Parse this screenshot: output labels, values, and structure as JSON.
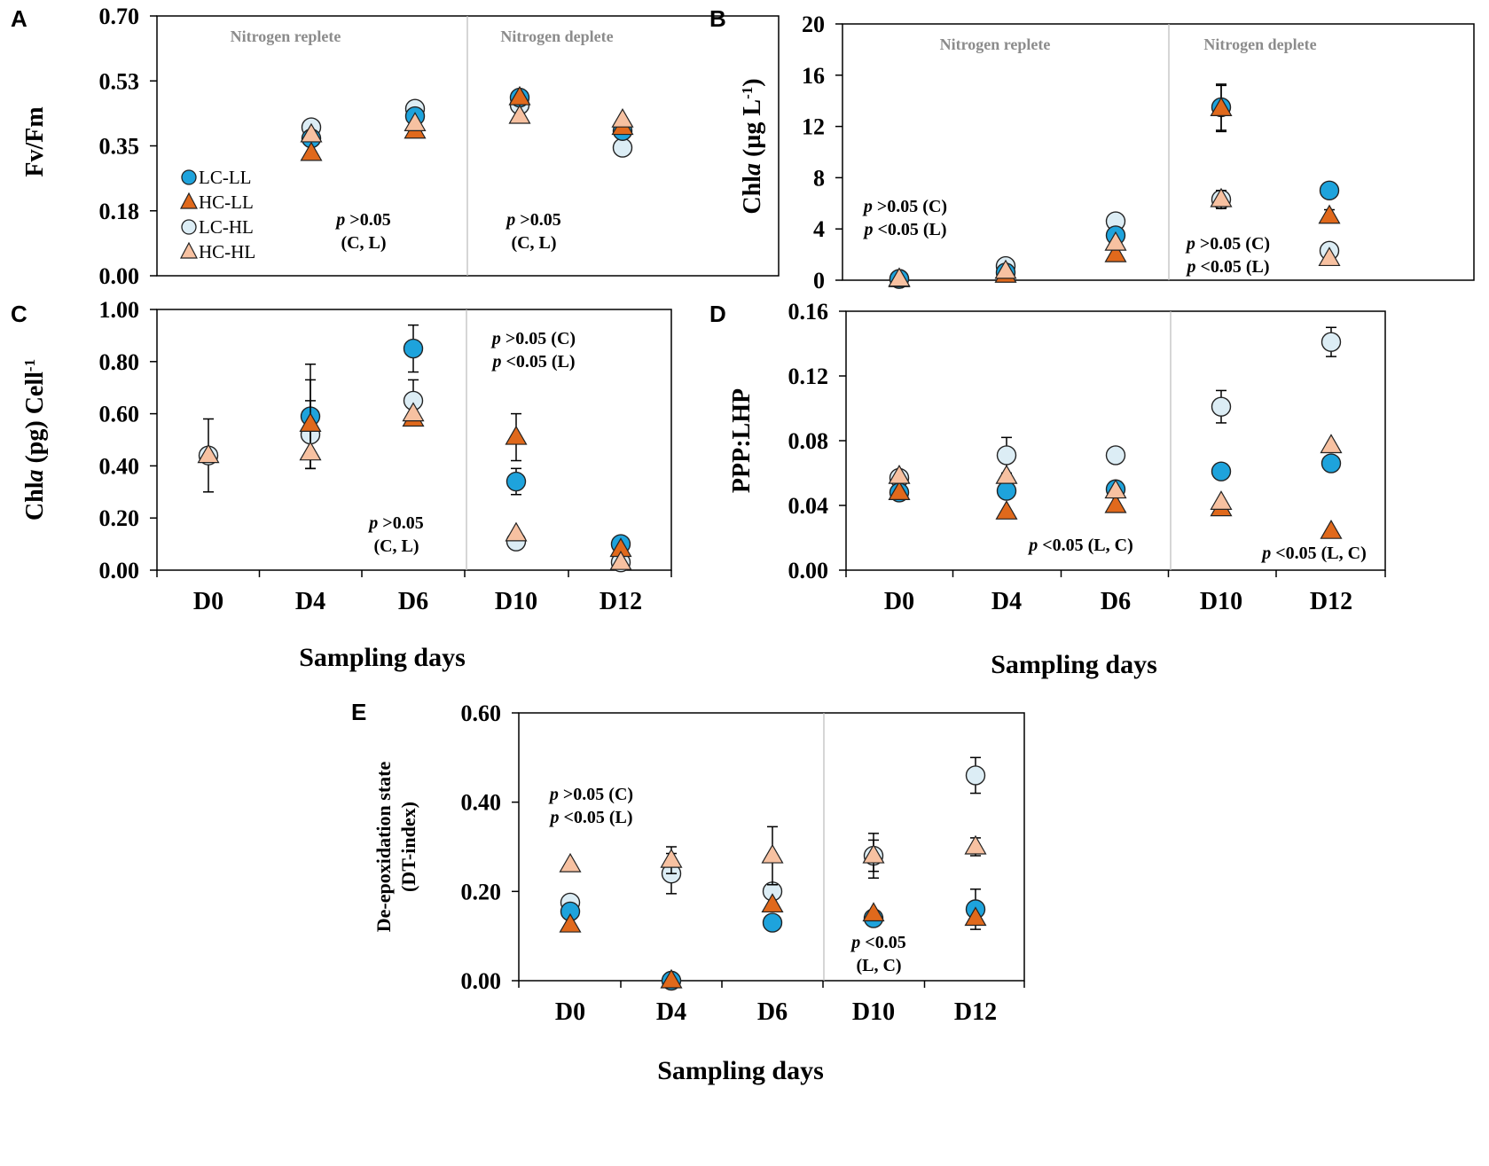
{
  "figure": {
    "legend": [
      {
        "key": "LC-LL",
        "label": "LC-LL",
        "marker": "circle",
        "fill": "#1ea3dc"
      },
      {
        "key": "HC-LL",
        "label": "HC-LL",
        "marker": "triangle",
        "fill": "#e0691c"
      },
      {
        "key": "LC-HL",
        "label": "LC-HL",
        "marker": "circle",
        "fill": "#dcedf5"
      },
      {
        "key": "HC-HL",
        "label": "HC-HL",
        "marker": "triangle",
        "fill": "#f7c1a1"
      }
    ],
    "colors": {
      "edge": "#222222",
      "divider": "#bbbbbb"
    }
  },
  "chart_data": [
    {
      "id": "A",
      "panel_letter": "A",
      "type": "scatter",
      "title": "",
      "ylabel": "Fv/Fm",
      "xlabel": "",
      "ylim": [
        0,
        0.7
      ],
      "yticks": [
        "0.00",
        "0.18",
        "0.35",
        "0.53",
        "0.70"
      ],
      "categories": [
        "D0",
        "D4",
        "D6",
        "D10",
        "D12"
      ],
      "show_xticks": false,
      "region_labels": [
        "Nitrogen replete",
        "Nitrogen deplete"
      ],
      "series": [
        {
          "name": "LC-LL",
          "values": [
            null,
            0.37,
            0.43,
            0.48,
            0.39
          ],
          "errors": [
            null,
            0,
            0,
            0,
            0
          ]
        },
        {
          "name": "HC-LL",
          "values": [
            null,
            0.33,
            0.39,
            0.48,
            0.4
          ],
          "errors": [
            null,
            0,
            0,
            0,
            0
          ]
        },
        {
          "name": "LC-HL",
          "values": [
            null,
            0.4,
            0.45,
            0.46,
            0.345
          ],
          "errors": [
            null,
            0,
            0,
            0,
            0
          ]
        },
        {
          "name": "HC-HL",
          "values": [
            null,
            0.38,
            0.41,
            0.43,
            0.42
          ],
          "errors": [
            null,
            0,
            0,
            0,
            0
          ]
        }
      ],
      "annotations": [
        {
          "p": "p",
          "text1": " >0.05",
          "text2": "(C, L)"
        },
        {
          "p": "p",
          "text1": " >0.05",
          "text2": "(C, L)"
        }
      ]
    },
    {
      "id": "B",
      "panel_letter": "B",
      "type": "scatter",
      "title": "",
      "ylabel": "Chla (µg L-1)",
      "ylabel_parts": [
        "Chl",
        "a",
        " (µg L",
        "-1",
        ")"
      ],
      "xlabel": "",
      "ylim": [
        0,
        20
      ],
      "yticks": [
        "0",
        "4",
        "8",
        "12",
        "16",
        "20"
      ],
      "categories": [
        "D0",
        "D4",
        "D6",
        "D10",
        "D12"
      ],
      "show_xticks": false,
      "region_labels": [
        "Nitrogen replete",
        "Nitrogen deplete"
      ],
      "series": [
        {
          "name": "LC-LL",
          "values": [
            0.1,
            0.6,
            3.5,
            13.5,
            7.0
          ],
          "errors": [
            0,
            0,
            0,
            1.8,
            0
          ]
        },
        {
          "name": "HC-LL",
          "values": [
            0.05,
            0.4,
            2.0,
            13.4,
            5.0
          ],
          "errors": [
            0,
            0,
            0,
            1.8,
            0.5
          ]
        },
        {
          "name": "LC-HL",
          "values": [
            0.1,
            1.1,
            4.6,
            6.3,
            2.3
          ],
          "errors": [
            0,
            0,
            0,
            0.7,
            0
          ]
        },
        {
          "name": "HC-HL",
          "values": [
            0.1,
            0.7,
            2.9,
            6.3,
            1.7
          ],
          "errors": [
            0,
            0,
            0,
            0.7,
            0
          ]
        }
      ],
      "annotations": [
        {
          "p": "p",
          "text1": " >0.05 (C)",
          "text2": " <0.05 (L)"
        },
        {
          "p": "p",
          "text1": " >0.05 (C)",
          "text2": " <0.05 (L)"
        }
      ]
    },
    {
      "id": "C",
      "panel_letter": "C",
      "type": "scatter",
      "title": "",
      "ylabel": "Chla (pg) Cell-1",
      "ylabel_parts": [
        "Chl",
        "a",
        " (pg) Cell",
        "-1",
        ""
      ],
      "xlabel": "Sampling days",
      "ylim": [
        0,
        1.0
      ],
      "yticks": [
        "0.00",
        "0.20",
        "0.40",
        "0.60",
        "0.80",
        "1.00"
      ],
      "categories": [
        "D0",
        "D4",
        "D6",
        "D10",
        "D12"
      ],
      "show_xticks": true,
      "region_labels": [],
      "series": [
        {
          "name": "LC-LL",
          "values": [
            null,
            0.59,
            0.85,
            0.34,
            0.1
          ],
          "errors": [
            null,
            0.2,
            0.09,
            0.05,
            0
          ]
        },
        {
          "name": "HC-LL",
          "values": [
            null,
            0.56,
            0.58,
            0.51,
            0.08
          ],
          "errors": [
            null,
            0.17,
            0,
            0.09,
            0
          ]
        },
        {
          "name": "LC-HL",
          "values": [
            0.44,
            0.52,
            0.65,
            0.11,
            0.03
          ],
          "errors": [
            0.14,
            0.13,
            0.08,
            0,
            0
          ]
        },
        {
          "name": "HC-HL",
          "values": [
            0.44,
            0.45,
            0.6,
            0.14,
            0.03
          ],
          "errors": [
            0,
            0,
            0,
            0,
            0
          ]
        }
      ],
      "annotations": [
        {
          "p": "p",
          "text1": " >0.05",
          "text2": "(C, L)"
        },
        {
          "p": "p",
          "text1": " >0.05 (C)",
          "text2": " <0.05 (L)"
        }
      ]
    },
    {
      "id": "D",
      "panel_letter": "D",
      "type": "scatter",
      "title": "",
      "ylabel": "PPP:LHP",
      "xlabel": "Sampling days",
      "ylim": [
        0,
        0.16
      ],
      "yticks": [
        "0.00",
        "0.04",
        "0.08",
        "0.12",
        "0.16"
      ],
      "categories": [
        "D0",
        "D4",
        "D6",
        "D10",
        "D12"
      ],
      "show_xticks": true,
      "region_labels": [],
      "series": [
        {
          "name": "LC-LL",
          "values": [
            0.048,
            0.049,
            0.05,
            0.061,
            0.066
          ],
          "errors": [
            0,
            0,
            0,
            0,
            0
          ]
        },
        {
          "name": "HC-LL",
          "values": [
            0.048,
            0.036,
            0.04,
            0.038,
            0.024
          ],
          "errors": [
            0,
            0,
            0,
            0,
            0
          ]
        },
        {
          "name": "LC-HL",
          "values": [
            0.057,
            0.071,
            0.071,
            0.101,
            0.141
          ],
          "errors": [
            0,
            0.011,
            0,
            0.01,
            0.009
          ]
        },
        {
          "name": "HC-HL",
          "values": [
            0.058,
            0.058,
            0.049,
            0.042,
            0.077
          ],
          "errors": [
            0,
            0,
            0,
            0,
            0
          ]
        }
      ],
      "annotations": [
        {
          "p": "p",
          "text1": " <0.05 (L, C)",
          "text2": ""
        },
        {
          "p": "p",
          "text1": " <0.05 (L, C)",
          "text2": ""
        }
      ]
    },
    {
      "id": "E",
      "panel_letter": "E",
      "type": "scatter",
      "title": "",
      "ylabel": "De-epoxidation state (DT-index)",
      "ylabel_lines": [
        "De-epoxidation state",
        "(DT-index)"
      ],
      "xlabel": "Sampling days",
      "ylim": [
        0,
        0.6
      ],
      "yticks": [
        "0.00",
        "0.20",
        "0.40",
        "0.60"
      ],
      "categories": [
        "D0",
        "D4",
        "D6",
        "D10",
        "D12"
      ],
      "show_xticks": true,
      "region_labels": [],
      "series": [
        {
          "name": "LC-LL",
          "values": [
            0.155,
            0.0,
            0.13,
            0.14,
            0.16
          ],
          "errors": [
            0,
            0,
            0,
            0,
            0.045
          ]
        },
        {
          "name": "HC-LL",
          "values": [
            0.125,
            0.0,
            0.17,
            0.15,
            0.14
          ],
          "errors": [
            0,
            0,
            0,
            0,
            0
          ]
        },
        {
          "name": "LC-HL",
          "values": [
            0.175,
            0.24,
            0.2,
            0.28,
            0.46
          ],
          "errors": [
            0,
            0.045,
            0,
            0.05,
            0.04
          ]
        },
        {
          "name": "HC-HL",
          "values": [
            0.26,
            0.27,
            0.28,
            0.28,
            0.3
          ],
          "errors": [
            0,
            0.03,
            0.065,
            0.035,
            0.02
          ]
        }
      ],
      "annotations": [
        {
          "p": "p",
          "text1": " >0.05 (C)",
          "text2": " <0.05 (L)"
        },
        {
          "p": "p",
          "text1": " <0.05",
          "text2": "(L, C)"
        }
      ]
    }
  ]
}
